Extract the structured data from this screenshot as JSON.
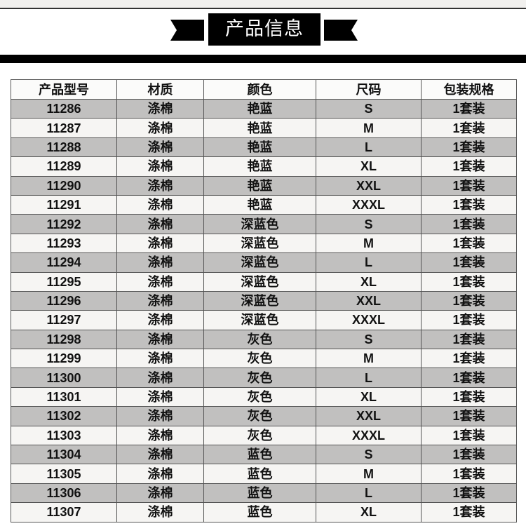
{
  "title": "产品信息",
  "table": {
    "headers": [
      "产品型号",
      "材质",
      "颜色",
      "尺码",
      "包装规格"
    ],
    "rows": [
      [
        "11286",
        "涤棉",
        "艳蓝",
        "S",
        "1套装"
      ],
      [
        "11287",
        "涤棉",
        "艳蓝",
        "M",
        "1套装"
      ],
      [
        "11288",
        "涤棉",
        "艳蓝",
        "L",
        "1套装"
      ],
      [
        "11289",
        "涤棉",
        "艳蓝",
        "XL",
        "1套装"
      ],
      [
        "11290",
        "涤棉",
        "艳蓝",
        "XXL",
        "1套装"
      ],
      [
        "11291",
        "涤棉",
        "艳蓝",
        "XXXL",
        "1套装"
      ],
      [
        "11292",
        "涤棉",
        "深蓝色",
        "S",
        "1套装"
      ],
      [
        "11293",
        "涤棉",
        "深蓝色",
        "M",
        "1套装"
      ],
      [
        "11294",
        "涤棉",
        "深蓝色",
        "L",
        "1套装"
      ],
      [
        "11295",
        "涤棉",
        "深蓝色",
        "XL",
        "1套装"
      ],
      [
        "11296",
        "涤棉",
        "深蓝色",
        "XXL",
        "1套装"
      ],
      [
        "11297",
        "涤棉",
        "深蓝色",
        "XXXL",
        "1套装"
      ],
      [
        "11298",
        "涤棉",
        "灰色",
        "S",
        "1套装"
      ],
      [
        "11299",
        "涤棉",
        "灰色",
        "M",
        "1套装"
      ],
      [
        "11300",
        "涤棉",
        "灰色",
        "L",
        "1套装"
      ],
      [
        "11301",
        "涤棉",
        "灰色",
        "XL",
        "1套装"
      ],
      [
        "11302",
        "涤棉",
        "灰色",
        "XXL",
        "1套装"
      ],
      [
        "11303",
        "涤棉",
        "灰色",
        "XXXL",
        "1套装"
      ],
      [
        "11304",
        "涤棉",
        "蓝色",
        "S",
        "1套装"
      ],
      [
        "11305",
        "涤棉",
        "蓝色",
        "M",
        "1套装"
      ],
      [
        "11306",
        "涤棉",
        "蓝色",
        "L",
        "1套装"
      ],
      [
        "11307",
        "涤棉",
        "蓝色",
        "XL",
        "1套装"
      ]
    ]
  }
}
